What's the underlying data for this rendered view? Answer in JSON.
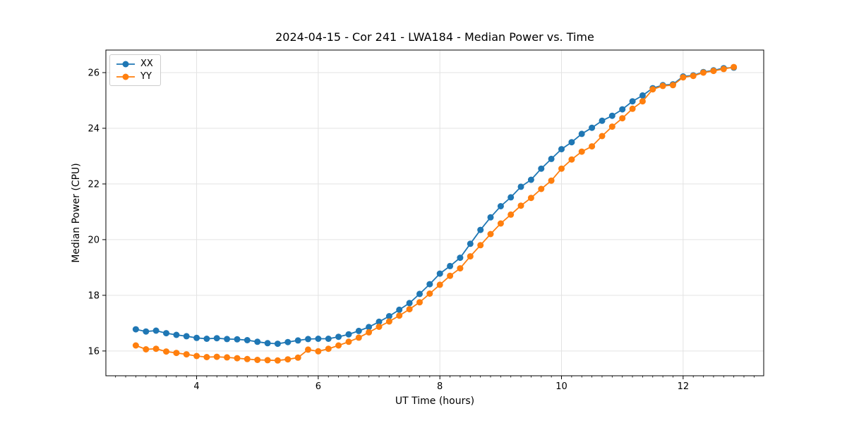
{
  "chart_data": {
    "type": "line",
    "title": "2024-04-15 - Cor 241 - LWA184 - Median Power vs. Time",
    "xlabel": "UT Time (hours)",
    "ylabel": "Median Power (CPU)",
    "grid": true,
    "legend_position": "upper-left",
    "xlim": [
      2.508,
      13.325
    ],
    "ylim": [
      15.11,
      26.81
    ],
    "xticks": [
      4,
      6,
      8,
      10,
      12
    ],
    "yticks": [
      16,
      18,
      20,
      22,
      24,
      26
    ],
    "x_minor_tick_step": 0.1667,
    "x": [
      3,
      3.167,
      3.333,
      3.5,
      3.667,
      3.833,
      4,
      4.167,
      4.333,
      4.5,
      4.667,
      4.833,
      5,
      5.167,
      5.333,
      5.5,
      5.667,
      5.833,
      6,
      6.167,
      6.333,
      6.5,
      6.667,
      6.833,
      7,
      7.167,
      7.333,
      7.5,
      7.667,
      7.833,
      8,
      8.167,
      8.333,
      8.5,
      8.667,
      8.833,
      9,
      9.167,
      9.333,
      9.5,
      9.667,
      9.833,
      10,
      10.167,
      10.333,
      10.5,
      10.667,
      10.833,
      11,
      11.167,
      11.333,
      11.5,
      11.667,
      11.833,
      12,
      12.167,
      12.333,
      12.5,
      12.667,
      12.833
    ],
    "series": [
      {
        "name": "XX",
        "color": "#1f77b4",
        "values": [
          16.78,
          16.7,
          16.73,
          16.64,
          16.58,
          16.53,
          16.47,
          16.44,
          16.46,
          16.43,
          16.42,
          16.39,
          16.33,
          16.28,
          16.26,
          16.32,
          16.38,
          16.43,
          16.44,
          16.44,
          16.51,
          16.6,
          16.72,
          16.86,
          17.05,
          17.25,
          17.48,
          17.72,
          18.05,
          18.4,
          18.78,
          19.05,
          19.35,
          19.85,
          20.35,
          20.8,
          21.2,
          21.52,
          21.9,
          22.15,
          22.55,
          22.9,
          23.25,
          23.5,
          23.8,
          24.02,
          24.27,
          24.45,
          24.68,
          24.97,
          25.18,
          25.44,
          25.55,
          25.58,
          25.86,
          25.9,
          26.02,
          26.08,
          26.16,
          26.18
        ]
      },
      {
        "name": "YY",
        "color": "#ff7f0e",
        "values": [
          16.2,
          16.06,
          16.08,
          15.98,
          15.93,
          15.88,
          15.82,
          15.78,
          15.79,
          15.77,
          15.74,
          15.71,
          15.68,
          15.67,
          15.66,
          15.7,
          15.76,
          16.05,
          15.99,
          16.08,
          16.2,
          16.33,
          16.48,
          16.67,
          16.87,
          17.06,
          17.27,
          17.5,
          17.75,
          18.06,
          18.38,
          18.7,
          18.97,
          19.4,
          19.8,
          20.2,
          20.58,
          20.9,
          21.22,
          21.5,
          21.82,
          22.12,
          22.55,
          22.88,
          23.16,
          23.35,
          23.72,
          24.06,
          24.36,
          24.7,
          24.97,
          25.4,
          25.52,
          25.55,
          25.83,
          25.88,
          26.0,
          26.06,
          26.13,
          26.2
        ]
      }
    ],
    "style": {
      "grid_color": "#e3e3e3",
      "spine_color": "#000000",
      "background": "#ffffff",
      "marker_radius": 4.5,
      "line_width": 1.8
    }
  }
}
